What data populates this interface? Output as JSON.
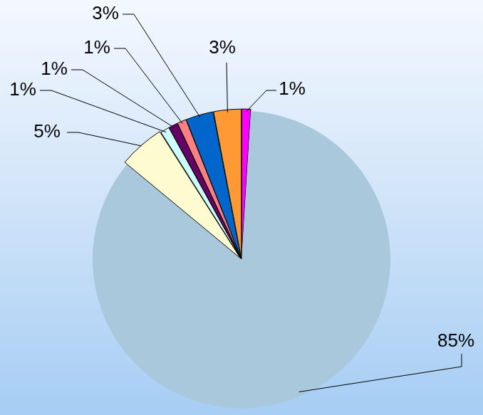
{
  "chart_data": {
    "type": "pie",
    "values": [
      1,
      85,
      5,
      1,
      1,
      1,
      3,
      3
    ],
    "value_labels": [
      "1%",
      "85%",
      "5%",
      "1%",
      "1%",
      "1%",
      "3%",
      "3%"
    ],
    "colors": [
      "#ff00ff",
      "#a9c8dc",
      "#fffbd0",
      "#ccffff",
      "#660066",
      "#ff8080",
      "#0066cc",
      "#ff9933"
    ],
    "data_labels": true
  }
}
